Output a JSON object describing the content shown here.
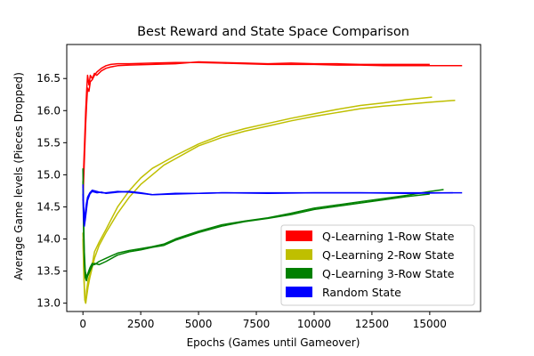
{
  "chart_data": {
    "type": "line",
    "title": "Best Reward and State Space Comparison",
    "xlabel": "Epochs (Games until Gameover)",
    "ylabel": "Average Game levels (Pieces Dropped)",
    "xlim": [
      -700,
      17200
    ],
    "ylim": [
      12.87,
      17.03
    ],
    "xticks": [
      0,
      2500,
      5000,
      7500,
      10000,
      12500,
      15000
    ],
    "yticks": [
      13.0,
      13.5,
      14.0,
      14.5,
      15.0,
      15.5,
      16.0,
      16.5
    ],
    "xtick_labels": [
      "0",
      "2500",
      "5000",
      "7500",
      "10000",
      "12500",
      "15000"
    ],
    "ytick_labels": [
      "13.0",
      "13.5",
      "14.0",
      "14.5",
      "15.0",
      "15.5",
      "16.0",
      "16.5"
    ],
    "grid": false,
    "legend_position": "lower-right",
    "series": [
      {
        "name": "Q-Learning 1-Row State",
        "color": "#ff0000",
        "runs": [
          [
            [
              0,
              14.8
            ],
            [
              40,
              15.2
            ],
            [
              80,
              15.6
            ],
            [
              120,
              16.0
            ],
            [
              160,
              16.3
            ],
            [
              200,
              16.55
            ],
            [
              260,
              16.4
            ],
            [
              320,
              16.55
            ],
            [
              400,
              16.5
            ],
            [
              500,
              16.58
            ],
            [
              600,
              16.55
            ],
            [
              800,
              16.62
            ],
            [
              1000,
              16.66
            ],
            [
              1200,
              16.68
            ],
            [
              1500,
              16.7
            ],
            [
              2000,
              16.71
            ],
            [
              3000,
              16.72
            ],
            [
              4000,
              16.73
            ],
            [
              5000,
              16.76
            ],
            [
              6000,
              16.75
            ],
            [
              7000,
              16.74
            ],
            [
              8000,
              16.73
            ],
            [
              9000,
              16.74
            ],
            [
              10000,
              16.73
            ],
            [
              11000,
              16.73
            ],
            [
              12000,
              16.72
            ],
            [
              13000,
              16.72
            ],
            [
              14000,
              16.72
            ],
            [
              15000,
              16.72
            ]
          ],
          [
            [
              0,
              14.6
            ],
            [
              40,
              15.0
            ],
            [
              80,
              15.4
            ],
            [
              120,
              15.8
            ],
            [
              160,
              16.1
            ],
            [
              200,
              16.35
            ],
            [
              260,
              16.3
            ],
            [
              320,
              16.45
            ],
            [
              400,
              16.48
            ],
            [
              500,
              16.55
            ],
            [
              600,
              16.6
            ],
            [
              800,
              16.66
            ],
            [
              1000,
              16.7
            ],
            [
              1200,
              16.72
            ],
            [
              1500,
              16.73
            ],
            [
              2000,
              16.73
            ],
            [
              3000,
              16.74
            ],
            [
              4000,
              16.75
            ],
            [
              5000,
              16.75
            ],
            [
              6000,
              16.74
            ],
            [
              7000,
              16.73
            ],
            [
              8000,
              16.72
            ],
            [
              9000,
              16.72
            ],
            [
              10000,
              16.72
            ],
            [
              11000,
              16.71
            ],
            [
              12000,
              16.71
            ],
            [
              13000,
              16.7
            ],
            [
              14000,
              16.7
            ],
            [
              15000,
              16.7
            ],
            [
              16000,
              16.7
            ],
            [
              16400,
              16.7
            ]
          ]
        ]
      },
      {
        "name": "Q-Learning 2-Row State",
        "color": "#bfbf00",
        "runs": [
          [
            [
              0,
              14.1
            ],
            [
              40,
              13.5
            ],
            [
              80,
              13.1
            ],
            [
              120,
              13.0
            ],
            [
              160,
              13.2
            ],
            [
              220,
              13.35
            ],
            [
              300,
              13.45
            ],
            [
              400,
              13.6
            ],
            [
              500,
              13.8
            ],
            [
              700,
              13.95
            ],
            [
              1000,
              14.15
            ],
            [
              1500,
              14.5
            ],
            [
              2000,
              14.75
            ],
            [
              2500,
              14.95
            ],
            [
              3000,
              15.1
            ],
            [
              3500,
              15.2
            ],
            [
              4000,
              15.3
            ],
            [
              5000,
              15.48
            ],
            [
              6000,
              15.62
            ],
            [
              7000,
              15.72
            ],
            [
              8000,
              15.8
            ],
            [
              9000,
              15.88
            ],
            [
              10000,
              15.95
            ],
            [
              11000,
              16.02
            ],
            [
              12000,
              16.08
            ],
            [
              13000,
              16.12
            ],
            [
              14000,
              16.17
            ],
            [
              15100,
              16.21
            ]
          ],
          [
            [
              0,
              14.0
            ],
            [
              40,
              13.4
            ],
            [
              80,
              13.05
            ],
            [
              120,
              13.0
            ],
            [
              160,
              13.1
            ],
            [
              220,
              13.25
            ],
            [
              300,
              13.4
            ],
            [
              400,
              13.55
            ],
            [
              500,
              13.7
            ],
            [
              700,
              13.9
            ],
            [
              1000,
              14.1
            ],
            [
              1500,
              14.4
            ],
            [
              2000,
              14.65
            ],
            [
              2500,
              14.85
            ],
            [
              3000,
              15.0
            ],
            [
              3500,
              15.15
            ],
            [
              4000,
              15.25
            ],
            [
              5000,
              15.45
            ],
            [
              6000,
              15.58
            ],
            [
              7000,
              15.68
            ],
            [
              8000,
              15.76
            ],
            [
              9000,
              15.84
            ],
            [
              10000,
              15.91
            ],
            [
              11000,
              15.97
            ],
            [
              12000,
              16.03
            ],
            [
              13000,
              16.07
            ],
            [
              14000,
              16.1
            ],
            [
              15000,
              16.13
            ],
            [
              16100,
              16.16
            ]
          ]
        ]
      },
      {
        "name": "Q-Learning 3-Row State",
        "color": "#008000",
        "runs": [
          [
            [
              0,
              15.1
            ],
            [
              30,
              14.3
            ],
            [
              60,
              13.8
            ],
            [
              100,
              13.5
            ],
            [
              150,
              13.4
            ],
            [
              200,
              13.45
            ],
            [
              300,
              13.55
            ],
            [
              400,
              13.62
            ],
            [
              500,
              13.6
            ],
            [
              700,
              13.65
            ],
            [
              1000,
              13.7
            ],
            [
              1500,
              13.78
            ],
            [
              2000,
              13.82
            ],
            [
              2500,
              13.85
            ],
            [
              3000,
              13.88
            ],
            [
              3500,
              13.92
            ],
            [
              4000,
              14.0
            ],
            [
              5000,
              14.12
            ],
            [
              6000,
              14.22
            ],
            [
              7000,
              14.28
            ],
            [
              8000,
              14.33
            ],
            [
              9000,
              14.4
            ],
            [
              10000,
              14.48
            ],
            [
              11000,
              14.53
            ],
            [
              12000,
              14.58
            ],
            [
              13000,
              14.63
            ],
            [
              14000,
              14.68
            ],
            [
              15000,
              14.74
            ],
            [
              15600,
              14.77
            ]
          ],
          [
            [
              0,
              14.9
            ],
            [
              30,
              14.1
            ],
            [
              60,
              13.65
            ],
            [
              100,
              13.4
            ],
            [
              150,
              13.35
            ],
            [
              200,
              13.42
            ],
            [
              300,
              13.5
            ],
            [
              400,
              13.58
            ],
            [
              500,
              13.62
            ],
            [
              700,
              13.6
            ],
            [
              1000,
              13.65
            ],
            [
              1500,
              13.75
            ],
            [
              2000,
              13.8
            ],
            [
              2500,
              13.83
            ],
            [
              3000,
              13.87
            ],
            [
              3500,
              13.9
            ],
            [
              4000,
              13.98
            ],
            [
              5000,
              14.1
            ],
            [
              6000,
              14.2
            ],
            [
              7000,
              14.27
            ],
            [
              8000,
              14.32
            ],
            [
              9000,
              14.38
            ],
            [
              10000,
              14.46
            ],
            [
              11000,
              14.51
            ],
            [
              12000,
              14.56
            ],
            [
              13000,
              14.61
            ],
            [
              14000,
              14.66
            ],
            [
              15000,
              14.7
            ]
          ]
        ]
      },
      {
        "name": "Random State",
        "color": "#0000ff",
        "runs": [
          [
            [
              0,
              14.7
            ],
            [
              30,
              14.3
            ],
            [
              60,
              14.2
            ],
            [
              100,
              14.3
            ],
            [
              150,
              14.45
            ],
            [
              200,
              14.6
            ],
            [
              300,
              14.7
            ],
            [
              400,
              14.74
            ],
            [
              600,
              14.72
            ],
            [
              800,
              14.73
            ],
            [
              1000,
              14.71
            ],
            [
              1500,
              14.73
            ],
            [
              2000,
              14.74
            ],
            [
              2500,
              14.72
            ],
            [
              3000,
              14.69
            ],
            [
              4000,
              14.71
            ],
            [
              5000,
              14.71
            ],
            [
              6000,
              14.72
            ],
            [
              8000,
              14.72
            ],
            [
              10000,
              14.72
            ],
            [
              12000,
              14.72
            ],
            [
              14000,
              14.72
            ],
            [
              16400,
              14.72
            ]
          ],
          [
            [
              0,
              14.85
            ],
            [
              30,
              14.5
            ],
            [
              60,
              14.3
            ],
            [
              100,
              14.4
            ],
            [
              150,
              14.55
            ],
            [
              200,
              14.65
            ],
            [
              300,
              14.72
            ],
            [
              400,
              14.76
            ],
            [
              600,
              14.74
            ],
            [
              800,
              14.72
            ],
            [
              1000,
              14.72
            ],
            [
              1500,
              14.74
            ],
            [
              2000,
              14.73
            ],
            [
              2500,
              14.71
            ],
            [
              3000,
              14.69
            ],
            [
              4000,
              14.7
            ],
            [
              5000,
              14.71
            ],
            [
              6000,
              14.72
            ],
            [
              8000,
              14.71
            ],
            [
              10000,
              14.72
            ],
            [
              12000,
              14.72
            ],
            [
              14000,
              14.71
            ],
            [
              16000,
              14.72
            ]
          ]
        ]
      }
    ]
  }
}
